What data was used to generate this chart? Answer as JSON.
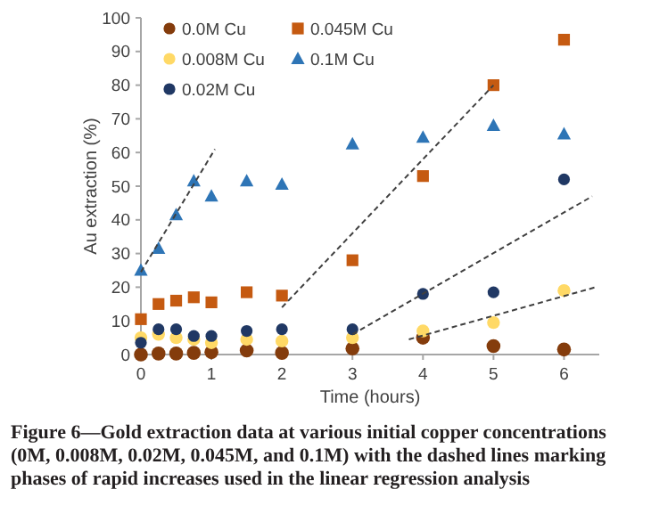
{
  "chart_data": {
    "type": "scatter",
    "xlabel": "Time (hours)",
    "ylabel": "Au extraction (%)",
    "x": [
      0,
      0.25,
      0.5,
      0.75,
      1,
      1.5,
      2,
      3,
      4,
      5,
      6
    ],
    "xlim": [
      0,
      6.5
    ],
    "xticks": [
      0,
      1,
      2,
      3,
      4,
      5,
      6
    ],
    "ylim": [
      0,
      100
    ],
    "yticks": [
      0,
      10,
      20,
      30,
      40,
      50,
      60,
      70,
      80,
      90,
      100
    ],
    "grid": false,
    "legend": "top left",
    "series": [
      {
        "name": "0.0M Cu",
        "color": "#843c0c",
        "marker": "circle",
        "values": [
          0,
          0.3,
          0.3,
          0.5,
          0.7,
          1.2,
          0.5,
          1.8,
          5,
          2.5,
          1.5
        ]
      },
      {
        "name": "0.008M Cu",
        "color": "#ffd966",
        "marker": "circle",
        "values": [
          5,
          6,
          5,
          4.5,
          3.5,
          4.5,
          4,
          5,
          7,
          9.5,
          19
        ]
      },
      {
        "name": "0.02M Cu",
        "color": "#203864",
        "marker": "circle",
        "values": [
          3.5,
          7.5,
          7.5,
          5.5,
          5.5,
          7,
          7.5,
          7.5,
          18,
          18.5,
          52
        ]
      },
      {
        "name": "0.045M Cu",
        "color": "#c55a11",
        "marker": "square",
        "values": [
          10.5,
          15,
          16,
          17,
          15.5,
          18.5,
          17.5,
          28,
          53,
          80,
          93.5
        ]
      },
      {
        "name": "0.1M Cu",
        "color": "#2e75b6",
        "marker": "triangle",
        "values": [
          25,
          31.5,
          41.5,
          51.5,
          47,
          51.5,
          50.5,
          62.5,
          64.5,
          68,
          65.5
        ]
      },
      {
        "type": "line",
        "color": "#404040",
        "marker": "none",
        "line_style": "dashed",
        "x": [
          0,
          1.05
        ],
        "values": [
          24.5,
          61
        ]
      },
      {
        "type": "line",
        "color": "#404040",
        "marker": "none",
        "line_style": "dashed",
        "x": [
          2,
          5
        ],
        "values": [
          14,
          80
        ]
      },
      {
        "type": "line",
        "color": "#404040",
        "marker": "none",
        "line_style": "dashed",
        "x": [
          3,
          6.4
        ],
        "values": [
          6,
          47
        ]
      },
      {
        "type": "line",
        "color": "#404040",
        "marker": "none",
        "line_style": "dashed",
        "x": [
          3.8,
          6.45
        ],
        "values": [
          4.5,
          20
        ]
      }
    ],
    "annotations": [
      "Figure 6—Gold extraction data at various initial copper concentrations (0M, 0.008M, 0.02M, 0.045M, and 0.1M) with the dashed lines marking phases of rapid increases used in the linear regression analysis"
    ]
  }
}
